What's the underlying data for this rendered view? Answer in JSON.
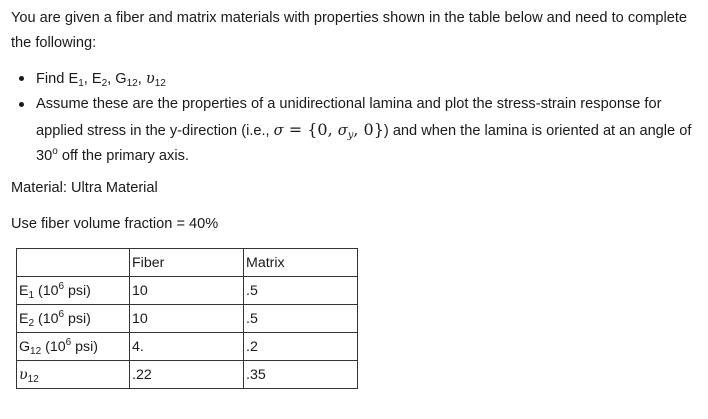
{
  "intro": "You are given a fiber and matrix materials with properties shown in the table below and need to complete the following:",
  "bullets": {
    "find": {
      "prefix": "Find ",
      "e1": "E",
      "e1_sub": "1",
      "e2": "E",
      "e2_sub": "2",
      "g12": "G",
      "g12_sub": "12",
      "nu": "υ",
      "nu_sub": "12",
      "sep": ", "
    },
    "assume": {
      "before": "Assume these are the properties of a unidirectional lamina and plot the stress-strain response for applied stress in the y-direction (i.e., ",
      "sigma": "σ",
      "eq": " = {0, ",
      "sigma_y": "σ",
      "y_sub": "y",
      "close": ", 0}",
      "after": ") and when the lamina is oriented at an angle of 30",
      "deg": "o",
      "end": " off the primary axis."
    }
  },
  "material": "Material: Ultra Material",
  "volume_fraction": "Use fiber volume fraction = 40%",
  "table": {
    "headers": [
      "",
      "Fiber",
      "Matrix"
    ],
    "rows": [
      {
        "sym": "E",
        "sub": "1",
        "unit_pre": " (10",
        "sup": "6",
        "unit_post": " psi)",
        "fiber": "10",
        "matrix": ".5"
      },
      {
        "sym": "E",
        "sub": "2",
        "unit_pre": " (10",
        "sup": "6",
        "unit_post": " psi)",
        "fiber": "10",
        "matrix": ".5"
      },
      {
        "sym": "G",
        "sub": "12",
        "unit_pre": " (10",
        "sup": "6",
        "unit_post": " psi)",
        "fiber": "4.",
        "matrix": ".2"
      },
      {
        "sym": "υ",
        "sub": "12",
        "unit_pre": "",
        "sup": "",
        "unit_post": "",
        "fiber": ".22",
        "matrix": ".35"
      }
    ]
  }
}
